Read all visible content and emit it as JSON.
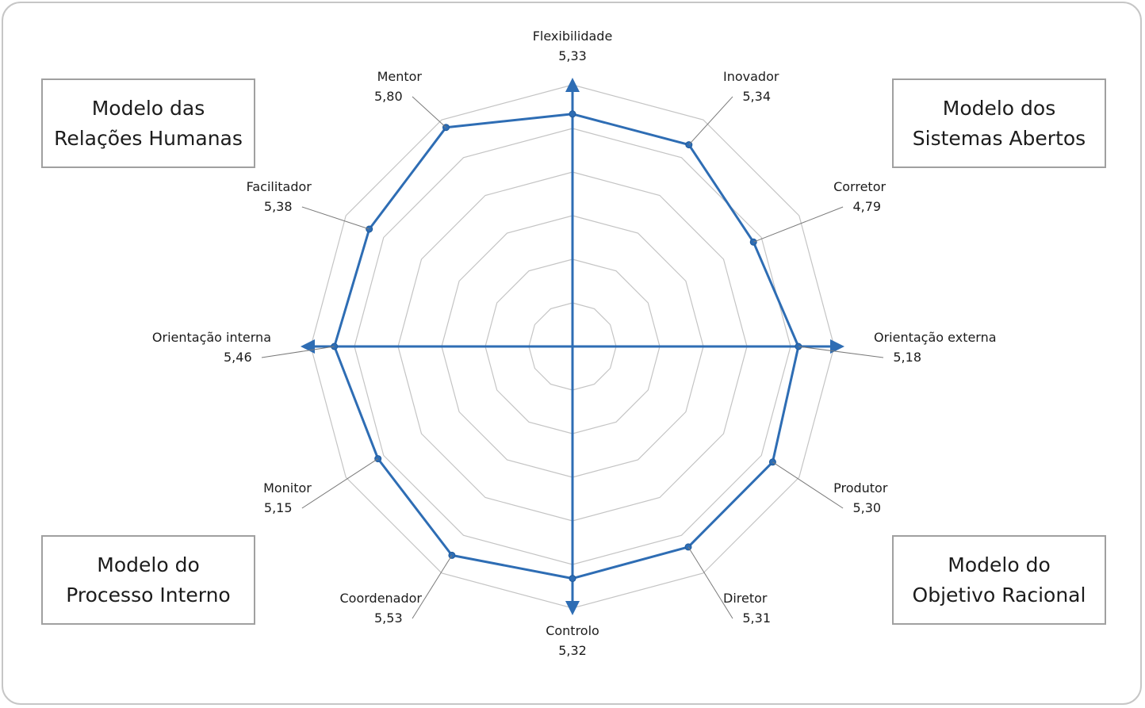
{
  "models": {
    "top_left": [
      "Modelo das",
      "Relações Humanas"
    ],
    "top_right": [
      "Modelo dos",
      "Sistemas Abertos"
    ],
    "bottom_left": [
      "Modelo do",
      "Processo Interno"
    ],
    "bottom_right": [
      "Modelo do",
      "Objetivo Racional"
    ]
  },
  "chart_data": {
    "type": "radar",
    "categories": [
      "Flexibilidade",
      "Inovador",
      "Corretor",
      "Orientação externa",
      "Produtor",
      "Diretor",
      "Controlo",
      "Coordenador",
      "Monitor",
      "Orientação interna",
      "Facilitador",
      "Mentor"
    ],
    "value_labels": [
      "5,33",
      "5,34",
      "4,79",
      "5,18",
      "5,30",
      "5,31",
      "5,32",
      "5,53",
      "5,15",
      "5,46",
      "5,38",
      "5,80"
    ],
    "values": [
      5.33,
      5.34,
      4.79,
      5.18,
      5.3,
      5.31,
      5.32,
      5.53,
      5.15,
      5.46,
      5.38,
      5.8
    ],
    "radial_range": [
      0,
      6
    ],
    "grid": true,
    "colors": {
      "series": "#2e6db4",
      "grid": "#c4c4c4",
      "leader": "#7a7a7a"
    }
  }
}
